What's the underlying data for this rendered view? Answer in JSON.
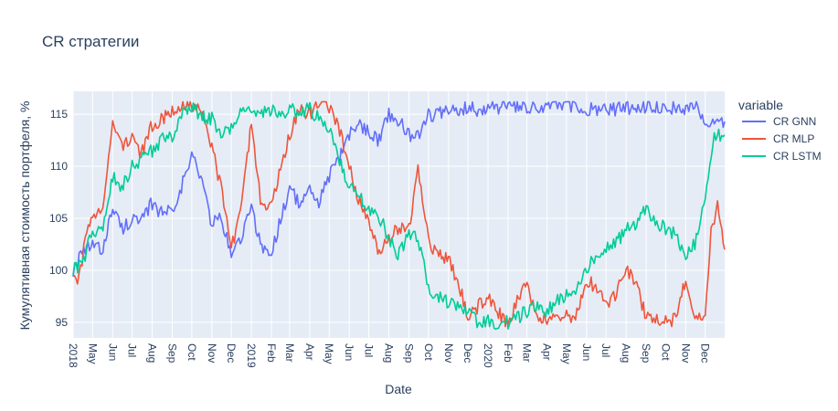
{
  "chart_data": {
    "type": "line",
    "title": "CR стратегии",
    "xlabel": "Date",
    "ylabel": "Кумулятивная стоимость портфеля, %",
    "xlim": [
      "2018-04-01",
      "2020-12-31"
    ],
    "ylim": [
      93.5,
      117.2
    ],
    "grid": true,
    "legend_title": "variable",
    "legend_position": "right",
    "y_ticks": [
      95,
      100,
      105,
      110,
      115
    ],
    "x_ticks": [
      {
        "date": "2018-04-01",
        "label": "2018"
      },
      {
        "date": "2018-05-01",
        "label": "May"
      },
      {
        "date": "2018-06-01",
        "label": "Jun"
      },
      {
        "date": "2018-07-01",
        "label": "Jul"
      },
      {
        "date": "2018-08-01",
        "label": "Aug"
      },
      {
        "date": "2018-09-01",
        "label": "Sep"
      },
      {
        "date": "2018-10-01",
        "label": "Oct"
      },
      {
        "date": "2018-11-01",
        "label": "Nov"
      },
      {
        "date": "2018-12-01",
        "label": "Dec"
      },
      {
        "date": "2019-01-01",
        "label": "2019"
      },
      {
        "date": "2019-02-01",
        "label": "Feb"
      },
      {
        "date": "2019-03-01",
        "label": "Mar"
      },
      {
        "date": "2019-04-01",
        "label": "Apr"
      },
      {
        "date": "2019-05-01",
        "label": "May"
      },
      {
        "date": "2019-06-01",
        "label": "Jun"
      },
      {
        "date": "2019-07-01",
        "label": "Jul"
      },
      {
        "date": "2019-08-01",
        "label": "Aug"
      },
      {
        "date": "2019-09-01",
        "label": "Sep"
      },
      {
        "date": "2019-10-01",
        "label": "Oct"
      },
      {
        "date": "2019-11-01",
        "label": "Nov"
      },
      {
        "date": "2019-12-01",
        "label": "Dec"
      },
      {
        "date": "2020-01-01",
        "label": "2020"
      },
      {
        "date": "2020-02-01",
        "label": "Feb"
      },
      {
        "date": "2020-03-01",
        "label": "Mar"
      },
      {
        "date": "2020-04-01",
        "label": "Apr"
      },
      {
        "date": "2020-05-01",
        "label": "May"
      },
      {
        "date": "2020-06-01",
        "label": "Jun"
      },
      {
        "date": "2020-07-01",
        "label": "Jul"
      },
      {
        "date": "2020-08-01",
        "label": "Aug"
      },
      {
        "date": "2020-09-01",
        "label": "Sep"
      },
      {
        "date": "2020-10-01",
        "label": "Oct"
      },
      {
        "date": "2020-11-01",
        "label": "Nov"
      },
      {
        "date": "2020-12-01",
        "label": "Dec"
      }
    ],
    "series": [
      {
        "name": "CR GNN",
        "color": "#636efa",
        "points": [
          [
            "2018-04-01",
            100.0
          ],
          [
            "2018-04-15",
            101.5
          ],
          [
            "2018-05-01",
            102.5
          ],
          [
            "2018-05-15",
            101.8
          ],
          [
            "2018-06-01",
            106.0
          ],
          [
            "2018-06-15",
            104.0
          ],
          [
            "2018-07-01",
            105.0
          ],
          [
            "2018-07-15",
            104.5
          ],
          [
            "2018-08-01",
            106.5
          ],
          [
            "2018-08-15",
            105.5
          ],
          [
            "2018-09-01",
            106.0
          ],
          [
            "2018-09-15",
            108.0
          ],
          [
            "2018-10-01",
            111.0
          ],
          [
            "2018-10-15",
            109.0
          ],
          [
            "2018-11-01",
            104.5
          ],
          [
            "2018-11-15",
            105.0
          ],
          [
            "2018-12-01",
            101.5
          ],
          [
            "2018-12-15",
            103.0
          ],
          [
            "2019-01-01",
            106.0
          ],
          [
            "2019-01-15",
            102.5
          ],
          [
            "2019-02-01",
            101.5
          ],
          [
            "2019-02-15",
            105.0
          ],
          [
            "2019-03-01",
            108.0
          ],
          [
            "2019-03-15",
            106.5
          ],
          [
            "2019-04-01",
            107.5
          ],
          [
            "2019-04-15",
            106.5
          ],
          [
            "2019-05-01",
            109.0
          ],
          [
            "2019-05-15",
            110.5
          ],
          [
            "2019-06-01",
            113.0
          ],
          [
            "2019-06-15",
            114.0
          ],
          [
            "2019-07-01",
            113.5
          ],
          [
            "2019-07-15",
            112.5
          ],
          [
            "2019-08-01",
            115.0
          ],
          [
            "2019-08-15",
            114.5
          ],
          [
            "2019-09-01",
            113.0
          ],
          [
            "2019-09-15",
            113.0
          ],
          [
            "2019-10-01",
            115.0
          ],
          [
            "2019-10-15",
            115.0
          ],
          [
            "2019-11-01",
            115.2
          ],
          [
            "2019-11-15",
            115.3
          ],
          [
            "2019-12-01",
            115.7
          ],
          [
            "2019-12-15",
            115.5
          ],
          [
            "2020-01-01",
            115.7
          ],
          [
            "2020-01-15",
            115.6
          ],
          [
            "2020-02-01",
            115.8
          ],
          [
            "2020-02-15",
            115.7
          ],
          [
            "2020-03-01",
            115.3
          ],
          [
            "2020-03-15",
            115.6
          ],
          [
            "2020-04-01",
            115.8
          ],
          [
            "2020-04-15",
            115.8
          ],
          [
            "2020-05-01",
            115.8
          ],
          [
            "2020-05-15",
            115.7
          ],
          [
            "2020-06-01",
            115.5
          ],
          [
            "2020-06-15",
            115.4
          ],
          [
            "2020-07-01",
            115.5
          ],
          [
            "2020-07-15",
            115.4
          ],
          [
            "2020-08-01",
            115.7
          ],
          [
            "2020-08-15",
            115.3
          ],
          [
            "2020-09-01",
            115.8
          ],
          [
            "2020-09-15",
            115.7
          ],
          [
            "2020-10-01",
            115.8
          ],
          [
            "2020-10-15",
            115.6
          ],
          [
            "2020-11-01",
            115.5
          ],
          [
            "2020-11-15",
            115.8
          ],
          [
            "2020-12-01",
            114.5
          ],
          [
            "2020-12-15",
            114.0
          ],
          [
            "2020-12-31",
            114.3
          ]
        ]
      },
      {
        "name": "CR MLP",
        "color": "#ef553b",
        "points": [
          [
            "2018-04-01",
            100.0
          ],
          [
            "2018-04-10",
            99.0
          ],
          [
            "2018-04-20",
            103.0
          ],
          [
            "2018-05-01",
            105.0
          ],
          [
            "2018-05-15",
            105.5
          ],
          [
            "2018-06-01",
            114.0
          ],
          [
            "2018-06-15",
            112.0
          ],
          [
            "2018-07-01",
            113.0
          ],
          [
            "2018-07-15",
            111.0
          ],
          [
            "2018-08-01",
            114.0
          ],
          [
            "2018-08-15",
            114.5
          ],
          [
            "2018-09-01",
            115.5
          ],
          [
            "2018-09-15",
            116.0
          ],
          [
            "2018-10-01",
            115.5
          ],
          [
            "2018-10-15",
            115.8
          ],
          [
            "2018-11-01",
            112.0
          ],
          [
            "2018-11-15",
            108.0
          ],
          [
            "2018-12-01",
            102.0
          ],
          [
            "2018-12-15",
            106.0
          ],
          [
            "2019-01-01",
            114.0
          ],
          [
            "2019-01-15",
            107.0
          ],
          [
            "2019-02-01",
            106.0
          ],
          [
            "2019-02-15",
            110.0
          ],
          [
            "2019-03-01",
            113.0
          ],
          [
            "2019-03-15",
            115.5
          ],
          [
            "2019-04-01",
            115.0
          ],
          [
            "2019-04-15",
            116.0
          ],
          [
            "2019-05-01",
            115.5
          ],
          [
            "2019-05-15",
            114.0
          ],
          [
            "2019-06-01",
            110.0
          ],
          [
            "2019-06-15",
            107.0
          ],
          [
            "2019-07-01",
            105.0
          ],
          [
            "2019-07-15",
            102.0
          ],
          [
            "2019-08-01",
            103.0
          ],
          [
            "2019-08-15",
            104.0
          ],
          [
            "2019-09-01",
            104.0
          ],
          [
            "2019-09-15",
            110.0
          ],
          [
            "2019-10-01",
            103.0
          ],
          [
            "2019-10-15",
            101.5
          ],
          [
            "2019-11-01",
            101.0
          ],
          [
            "2019-11-15",
            99.0
          ],
          [
            "2019-12-01",
            95.5
          ],
          [
            "2019-12-15",
            96.5
          ],
          [
            "2020-01-01",
            97.5
          ],
          [
            "2020-01-15",
            96.0
          ],
          [
            "2020-02-01",
            95.0
          ],
          [
            "2020-02-15",
            97.0
          ],
          [
            "2020-03-01",
            98.5
          ],
          [
            "2020-03-15",
            95.5
          ],
          [
            "2020-04-01",
            95.3
          ],
          [
            "2020-04-15",
            95.5
          ],
          [
            "2020-05-01",
            95.5
          ],
          [
            "2020-05-15",
            95.2
          ],
          [
            "2020-06-01",
            99.0
          ],
          [
            "2020-06-15",
            98.5
          ],
          [
            "2020-07-01",
            96.5
          ],
          [
            "2020-07-15",
            97.5
          ],
          [
            "2020-08-01",
            100.0
          ],
          [
            "2020-08-15",
            99.0
          ],
          [
            "2020-09-01",
            95.5
          ],
          [
            "2020-09-15",
            95.3
          ],
          [
            "2020-10-01",
            95.3
          ],
          [
            "2020-10-15",
            95.2
          ],
          [
            "2020-11-01",
            99.0
          ],
          [
            "2020-11-15",
            95.0
          ],
          [
            "2020-12-01",
            96.0
          ],
          [
            "2020-12-10",
            103.5
          ],
          [
            "2020-12-20",
            106.5
          ],
          [
            "2020-12-31",
            102.0
          ]
        ]
      },
      {
        "name": "CR LSTM",
        "color": "#00cc96",
        "points": [
          [
            "2018-04-01",
            100.0
          ],
          [
            "2018-04-15",
            100.5
          ],
          [
            "2018-05-01",
            104.0
          ],
          [
            "2018-05-15",
            103.5
          ],
          [
            "2018-06-01",
            109.0
          ],
          [
            "2018-06-15",
            108.0
          ],
          [
            "2018-07-01",
            110.0
          ],
          [
            "2018-07-15",
            110.5
          ],
          [
            "2018-08-01",
            111.5
          ],
          [
            "2018-08-15",
            112.5
          ],
          [
            "2018-09-01",
            113.0
          ],
          [
            "2018-09-15",
            115.0
          ],
          [
            "2018-10-01",
            115.5
          ],
          [
            "2018-10-15",
            115.0
          ],
          [
            "2018-11-01",
            114.5
          ],
          [
            "2018-11-15",
            113.0
          ],
          [
            "2018-12-01",
            113.5
          ],
          [
            "2018-12-15",
            115.5
          ],
          [
            "2019-01-01",
            115.5
          ],
          [
            "2019-01-15",
            115.0
          ],
          [
            "2019-02-01",
            115.3
          ],
          [
            "2019-02-15",
            115.0
          ],
          [
            "2019-03-01",
            115.5
          ],
          [
            "2019-03-15",
            115.0
          ],
          [
            "2019-04-01",
            115.5
          ],
          [
            "2019-04-15",
            114.5
          ],
          [
            "2019-05-01",
            113.5
          ],
          [
            "2019-05-15",
            111.0
          ],
          [
            "2019-06-01",
            108.0
          ],
          [
            "2019-06-15",
            107.0
          ],
          [
            "2019-07-01",
            106.0
          ],
          [
            "2019-07-15",
            105.5
          ],
          [
            "2019-08-01",
            103.0
          ],
          [
            "2019-08-15",
            101.5
          ],
          [
            "2019-09-01",
            103.5
          ],
          [
            "2019-09-15",
            103.0
          ],
          [
            "2019-10-01",
            98.5
          ],
          [
            "2019-10-15",
            97.5
          ],
          [
            "2019-11-01",
            97.0
          ],
          [
            "2019-11-15",
            96.5
          ],
          [
            "2019-12-01",
            96.0
          ],
          [
            "2019-12-15",
            95.2
          ],
          [
            "2020-01-01",
            95.0
          ],
          [
            "2020-01-15",
            94.8
          ],
          [
            "2020-02-01",
            95.0
          ],
          [
            "2020-02-15",
            95.5
          ],
          [
            "2020-03-01",
            96.0
          ],
          [
            "2020-03-15",
            96.5
          ],
          [
            "2020-04-01",
            96.0
          ],
          [
            "2020-04-15",
            97.0
          ],
          [
            "2020-05-01",
            97.5
          ],
          [
            "2020-05-15",
            98.0
          ],
          [
            "2020-06-01",
            100.0
          ],
          [
            "2020-06-15",
            101.5
          ],
          [
            "2020-07-01",
            102.0
          ],
          [
            "2020-07-15",
            102.5
          ],
          [
            "2020-08-01",
            104.0
          ],
          [
            "2020-08-15",
            104.5
          ],
          [
            "2020-09-01",
            106.0
          ],
          [
            "2020-09-15",
            104.5
          ],
          [
            "2020-10-01",
            104.0
          ],
          [
            "2020-10-15",
            103.5
          ],
          [
            "2020-11-01",
            101.5
          ],
          [
            "2020-11-15",
            102.5
          ],
          [
            "2020-12-01",
            107.0
          ],
          [
            "2020-12-15",
            113.0
          ],
          [
            "2020-12-31",
            113.0
          ]
        ]
      }
    ]
  }
}
